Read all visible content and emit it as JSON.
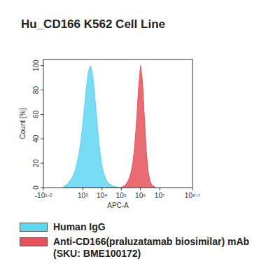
{
  "chart_data": {
    "type": "area",
    "title": "Hu_CD166 K562 Cell Line",
    "x_label": "APC-A",
    "y_label": "Count [%]",
    "log": "x",
    "grid": false,
    "legend": "bottom-left",
    "x": [
      100,
      126,
      158,
      200,
      251,
      316,
      398,
      501,
      631,
      794,
      1000,
      1259,
      1585,
      1995,
      2512,
      3162,
      3981,
      5012,
      6310,
      7943,
      10000,
      12589,
      15849,
      19953,
      25119,
      31623,
      39811,
      50119,
      63096,
      79433,
      100000,
      125893,
      158489,
      199526,
      251189,
      316228,
      398107,
      501187,
      630957,
      794328,
      1000000,
      1258925,
      1584893,
      1995262,
      2511886,
      3162278,
      3981072,
      5011872,
      6309573
    ],
    "series": [
      {
        "name": "Human IgG",
        "color": "#5fd6f2",
        "values": [
          1,
          2,
          3,
          5,
          7,
          10,
          14,
          20,
          28,
          38,
          52,
          68,
          84,
          96,
          100,
          94,
          80,
          62,
          44,
          29,
          18,
          11,
          7,
          4,
          3,
          2,
          1,
          1,
          0,
          0,
          0,
          0,
          0,
          0,
          0,
          0,
          0,
          0,
          0,
          0,
          0,
          0,
          0,
          0,
          0,
          0,
          0,
          0,
          0
        ]
      },
      {
        "name": "Anti-CD166(praluzatamab biosimilar) mAb (SKU: BME100172)",
        "color": "#e5525b",
        "values": [
          0,
          0,
          0,
          0,
          0,
          0,
          0,
          0,
          0,
          0,
          0,
          0,
          0,
          0,
          0,
          0,
          0,
          0,
          0,
          0,
          0,
          0,
          0,
          0,
          0,
          0,
          0,
          0,
          0,
          0,
          0,
          1,
          2,
          4,
          7,
          12,
          20,
          34,
          56,
          82,
          100,
          88,
          58,
          30,
          13,
          5,
          2,
          1,
          0
        ]
      }
    ],
    "xlim": [
      -15.85,
      501187234
    ],
    "xticks": [
      {
        "value": -15.85,
        "label": "-10¹·²"
      },
      {
        "value": 1000,
        "label": "10³"
      },
      {
        "value": 10000,
        "label": "10⁴"
      },
      {
        "value": 100000,
        "label": "10⁵"
      },
      {
        "value": 1000000,
        "label": "10⁶"
      },
      {
        "value": 10000000,
        "label": "10⁷"
      },
      {
        "value": 501187234,
        "label": "10⁸·⁷"
      }
    ],
    "ylim": [
      0,
      105
    ],
    "yticks": [
      0,
      20,
      40,
      60,
      80,
      100
    ]
  }
}
